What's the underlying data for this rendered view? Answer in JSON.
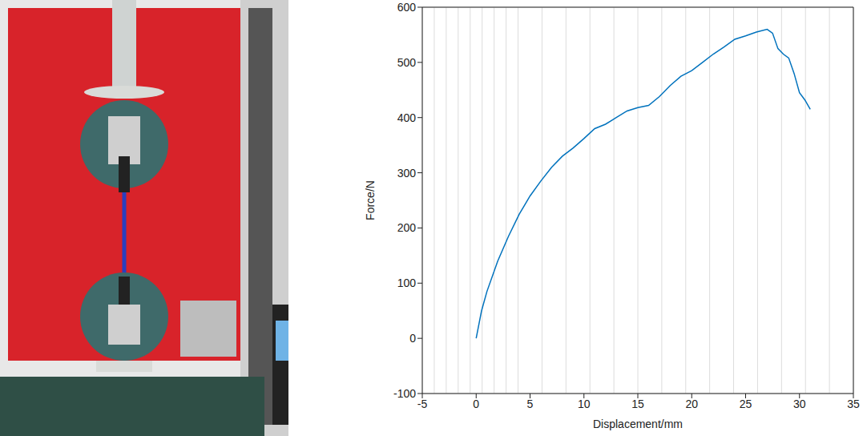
{
  "chart_data": {
    "type": "line",
    "xlabel": "Displacement/mm",
    "ylabel": "Force/N",
    "color": "#0072bd",
    "grid": true,
    "xlim": [
      -5,
      35
    ],
    "xticks": [
      -5,
      0,
      5,
      10,
      15,
      20,
      25,
      30,
      35
    ],
    "ylim": [
      -100,
      600
    ],
    "yticks": [
      -100,
      0,
      100,
      200,
      300,
      400,
      500,
      600
    ],
    "x": [
      0,
      0.5,
      1,
      2,
      3,
      4,
      5,
      6,
      7,
      8,
      9,
      10,
      11,
      12,
      13,
      14,
      15,
      16,
      17,
      18,
      19,
      20,
      21,
      22,
      23,
      24,
      25,
      26,
      27,
      27.5,
      28,
      28.5,
      29,
      29.5,
      30,
      30.5,
      31
    ],
    "values": [
      0,
      50,
      85,
      140,
      185,
      225,
      258,
      285,
      310,
      330,
      345,
      362,
      380,
      388,
      400,
      412,
      418,
      422,
      438,
      458,
      475,
      485,
      500,
      515,
      528,
      542,
      548,
      555,
      560,
      553,
      525,
      515,
      508,
      480,
      445,
      432,
      415
    ]
  }
}
